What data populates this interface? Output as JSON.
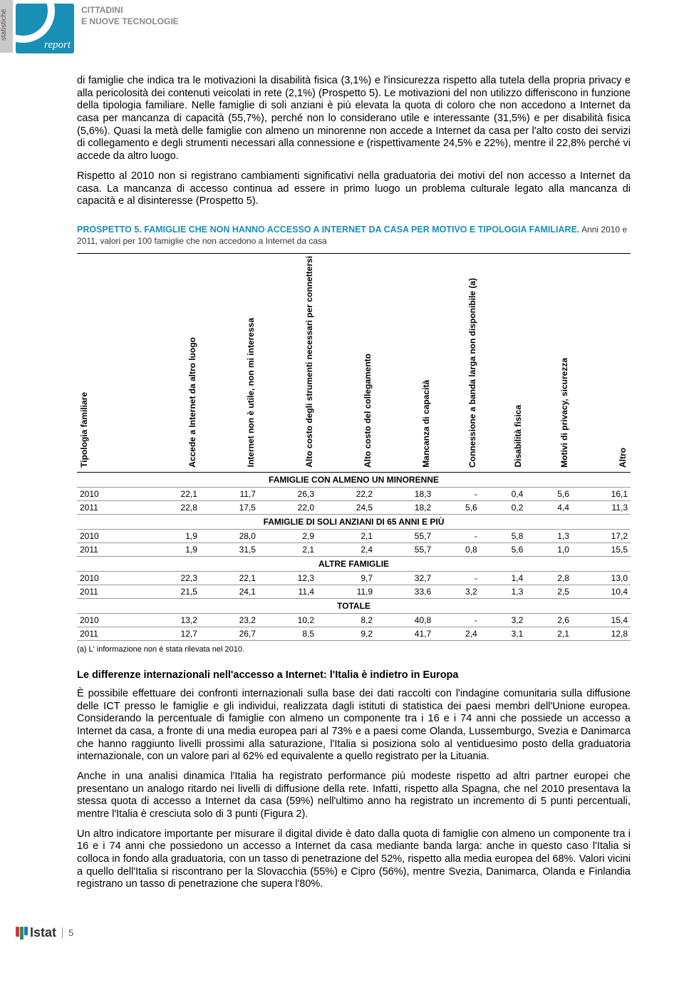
{
  "header": {
    "sidebar_tab": "statistiche",
    "logo_text": "report",
    "title_line1": "CITTADINI",
    "title_line2": "E NUOVE TECNOLOGIE"
  },
  "paragraphs": {
    "p1": "di famiglie che indica tra le motivazioni la disabilità fisica (3,1%) e l'insicurezza rispetto alla tutela della propria privacy e alla pericolosità dei contenuti veicolati in rete (2,1%) (Prospetto 5). Le motivazioni del non utilizzo differiscono in funzione della tipologia familiare. Nelle famiglie di soli anziani è più elevata la quota di coloro che non accedono a Internet da casa per mancanza di capacità (55,7%), perché non lo considerano utile e interessante (31,5%) e per disabilità fisica (5,6%). Quasi la metà delle famiglie con almeno un minorenne non accede a Internet da casa per l'alto costo dei servizi di collegamento e degli strumenti necessari alla connessione e (rispettivamente 24,5% e 22%), mentre il 22,8% perché vi accede da altro luogo.",
    "p2": "Rispetto al 2010 non si registrano cambiamenti significativi nella graduatoria dei motivi del non accesso a Internet da casa. La mancanza di accesso continua ad essere in primo luogo un problema culturale legato alla mancanza di capacità e al disinteresse (Prospetto 5).",
    "p3": "È possibile effettuare dei confronti internazionali sulla base dei dati raccolti con l'indagine comunitaria sulla diffusione delle ICT presso le famiglie e gli individui, realizzata dagli istituti di statistica dei paesi membri dell'Unione europea. Considerando la percentuale di famiglie con almeno un componente tra i 16 e i 74 anni che possiede un accesso a Internet da casa, a fronte di una media europea pari al 73% e a paesi come Olanda, Lussemburgo, Svezia e Danimarca che hanno raggiunto livelli prossimi alla saturazione, l'Italia si posiziona solo al ventiduesimo posto della graduatoria internazionale, con un valore pari al 62% ed equivalente a quello registrato per la Lituania.",
    "p4": "Anche in una analisi dinamica l'Italia ha registrato performance più modeste rispetto ad altri partner europei che presentano un analogo ritardo nei livelli di diffusione della rete. Infatti, rispetto alla Spagna, che nel 2010 presentava la stessa quota di accesso a Internet da casa (59%) nell'ultimo anno ha registrato un incremento di 5 punti percentuali, mentre l'Italia è cresciuta solo di 3 punti (Figura 2).",
    "p5": "Un altro indicatore importante per misurare il digital divide è dato dalla quota di famiglie con almeno un componente tra i 16 e i 74 anni che possiedono un accesso a Internet da casa mediante banda larga: anche in questo caso l'Italia si colloca in fondo alla graduatoria, con un tasso di penetrazione del 52%, rispetto alla media europea del 68%. Valori vicini a quello dell'Italia si riscontrano per la Slovacchia (55%) e Cipro (56%), mentre Svezia, Danimarca, Olanda e Finlandia registrano un tasso di penetrazione che supera l'80%."
  },
  "prospetto": {
    "title_prefix": "PROSPETTO 5. ",
    "title": "FAMIGLIE CHE NON HANNO ACCESSO A INTERNET DA CASA PER MOTIVO E TIPOLOGIA FAMILIARE.",
    "subtitle": " Anni 2010 e 2011, valori per 100 famiglie che non accedono a Internet da casa",
    "columns": [
      "Tipologia familiare",
      "Accede a Internet da altro luogo",
      "Internet non è utile, non mi interessa",
      "Alto costo degli strumenti necessari per connettersi",
      "Alto costo del collegamento",
      "Mancanza di capacità",
      "Connessione a banda larga non disponibile (a)",
      "Disabilità fisica",
      "Motivi di privacy, sicurezza",
      "Altro"
    ],
    "sections": [
      {
        "label": "FAMIGLIE CON ALMENO UN MINORENNE",
        "rows": [
          {
            "year": "2010",
            "v": [
              "22,1",
              "11,7",
              "26,3",
              "22,2",
              "18,3",
              "-",
              "0,4",
              "5,6",
              "16,1"
            ]
          },
          {
            "year": "2011",
            "v": [
              "22,8",
              "17,5",
              "22,0",
              "24,5",
              "18,2",
              "5,6",
              "0,2",
              "4,4",
              "11,3"
            ]
          }
        ]
      },
      {
        "label": "FAMIGLIE DI SOLI ANZIANI DI 65 ANNI E PIÙ",
        "rows": [
          {
            "year": "2010",
            "v": [
              "1,9",
              "28,0",
              "2,9",
              "2,1",
              "55,7",
              "-",
              "5,8",
              "1,3",
              "17,2"
            ]
          },
          {
            "year": "2011",
            "v": [
              "1,9",
              "31,5",
              "2,1",
              "2,4",
              "55,7",
              "0,8",
              "5,6",
              "1,0",
              "15,5"
            ]
          }
        ]
      },
      {
        "label": "ALTRE FAMIGLIE",
        "rows": [
          {
            "year": "2010",
            "v": [
              "22,3",
              "22,1",
              "12,3",
              "9,7",
              "32,7",
              "-",
              "1,4",
              "2,8",
              "13,0"
            ]
          },
          {
            "year": "2011",
            "v": [
              "21,5",
              "24,1",
              "11,4",
              "11,9",
              "33,6",
              "3,2",
              "1,3",
              "2,5",
              "10,4"
            ]
          }
        ]
      },
      {
        "label": "TOTALE",
        "rows": [
          {
            "year": "2010",
            "v": [
              "13,2",
              "23,2",
              "10,2",
              "8,2",
              "40,8",
              "-",
              "3,2",
              "2,6",
              "15,4"
            ]
          },
          {
            "year": "2011",
            "v": [
              "12,7",
              "26,7",
              "8,5",
              "9,2",
              "41,7",
              "2,4",
              "3,1",
              "2,1",
              "12,8"
            ]
          }
        ]
      }
    ],
    "note": "(a) L' informazione non è stata rilevata nel 2010."
  },
  "section2_heading": "Le differenze internazionali nell'accesso a Internet: l'Italia è indietro in Europa",
  "footer": {
    "istat": "Istat",
    "page": "5"
  }
}
